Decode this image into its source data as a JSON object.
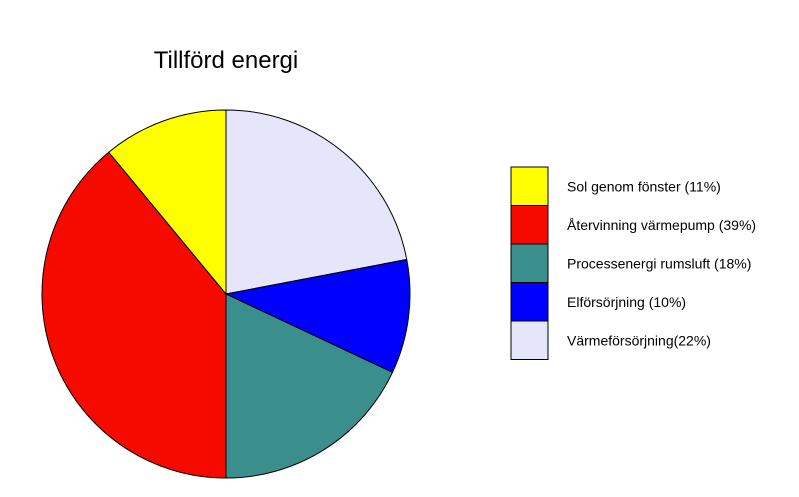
{
  "chart_data": {
    "type": "pie",
    "title": "Tillförd energi",
    "legend_position": "right",
    "start": "12 o'clock",
    "direction": "clockwise",
    "slices": [
      {
        "label": "Värmeförsörjning(22%)",
        "value": 22,
        "color": "#e6e6fa"
      },
      {
        "label": "Elförsörjning (10%)",
        "value": 10,
        "color": "#0000ff"
      },
      {
        "label": "Processenergi rumsluft (18%)",
        "value": 18,
        "color": "#3a8f8c"
      },
      {
        "label": "Återvinning värmepump (39%)",
        "value": 39,
        "color": "#f60a00"
      },
      {
        "label": "Sol genom fönster (11%)",
        "value": 11,
        "color": "#ffff00"
      }
    ],
    "legend_order": [
      "Sol genom fönster (11%)",
      "Återvinning värmepump (39%)",
      "Processenergi rumsluft (18%)",
      "Elförsörjning (10%)",
      "Värmeförsörjning(22%)"
    ]
  }
}
